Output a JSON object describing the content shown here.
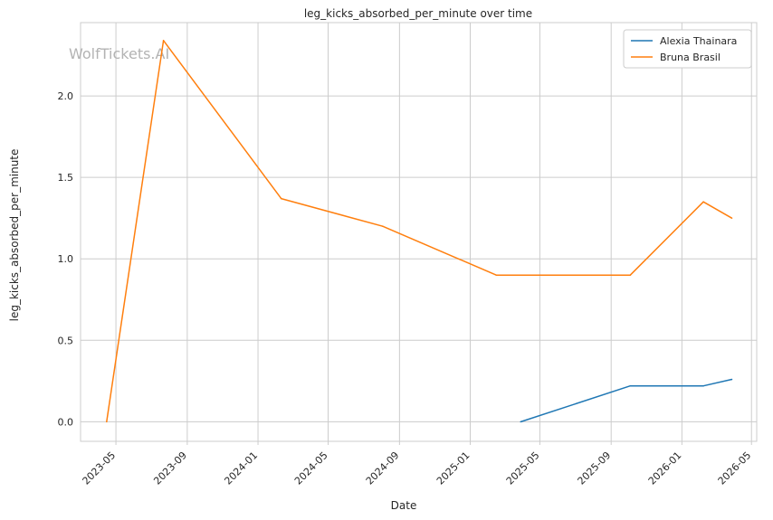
{
  "chart_data": {
    "type": "line",
    "title": "leg_kicks_absorbed_per_minute over time",
    "xlabel": "Date",
    "ylabel": "leg_kicks_absorbed_per_minute",
    "watermark": "WolfTickets.AI",
    "x_ticks": [
      "2023-05",
      "2023-09",
      "2024-01",
      "2024-05",
      "2024-09",
      "2025-01",
      "2025-05",
      "2025-09",
      "2026-01",
      "2026-05"
    ],
    "y_ticks": [
      "0.0",
      "0.5",
      "1.0",
      "1.5",
      "2.0"
    ],
    "xlim": [
      "2023-03-01",
      "2026-05-10"
    ],
    "ylim": [
      -0.12,
      2.45
    ],
    "grid": true,
    "legend_position": "top-right",
    "series": [
      {
        "name": "Alexia Thainara",
        "color": "#1f77b4",
        "points": [
          {
            "x": "2025-03-29",
            "y": 0.0
          },
          {
            "x": "2025-10-04",
            "y": 0.22
          },
          {
            "x": "2026-02-07",
            "y": 0.22
          },
          {
            "x": "2026-03-28",
            "y": 0.26
          }
        ]
      },
      {
        "name": "Bruna Brasil",
        "color": "#ff7f0e",
        "points": [
          {
            "x": "2023-04-15",
            "y": 0.0
          },
          {
            "x": "2023-07-22",
            "y": 2.34
          },
          {
            "x": "2024-02-10",
            "y": 1.37
          },
          {
            "x": "2024-08-03",
            "y": 1.2
          },
          {
            "x": "2025-02-15",
            "y": 0.9
          },
          {
            "x": "2025-10-04",
            "y": 0.9
          },
          {
            "x": "2026-02-07",
            "y": 1.35
          },
          {
            "x": "2026-03-28",
            "y": 1.25
          }
        ]
      }
    ]
  }
}
